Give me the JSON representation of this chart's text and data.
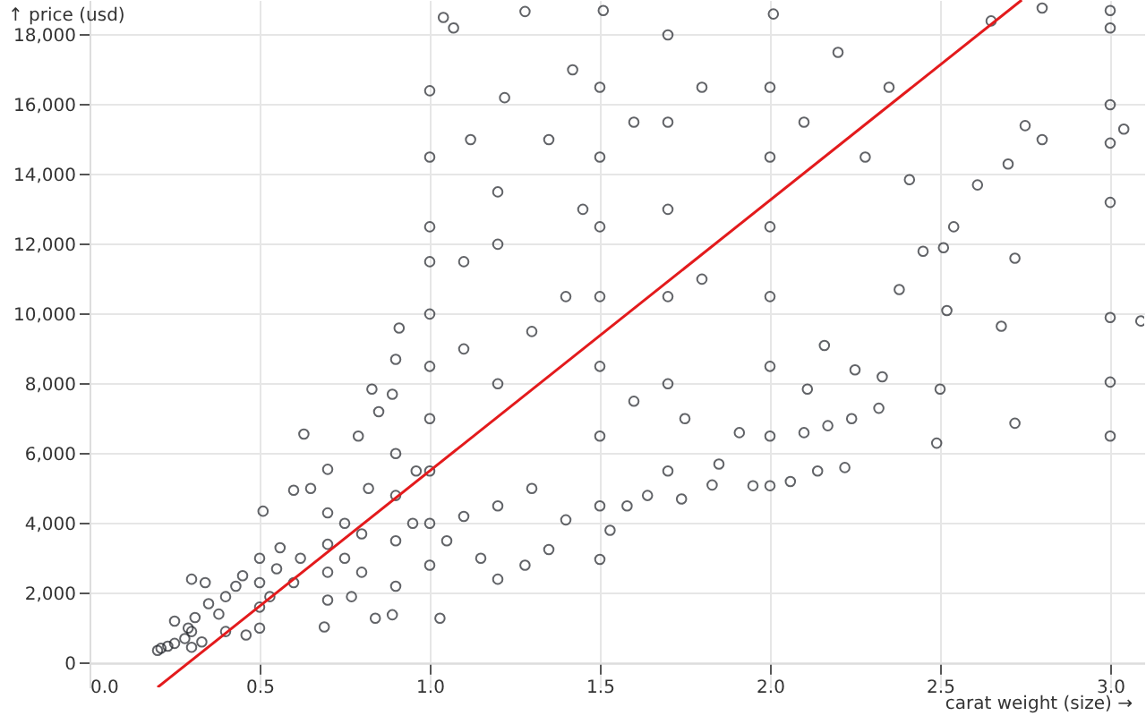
{
  "chart_data": {
    "type": "scatter",
    "xlabel": "carat weight (size) →",
    "ylabel": "↑ price (usd)",
    "xlim": [
      0,
      3.1
    ],
    "ylim": [
      -700,
      19000
    ],
    "xticks": [
      {
        "value": 0,
        "label": "0.0"
      },
      0.5,
      {
        "value": 1,
        "label": "1.0"
      },
      1.5,
      {
        "value": 2,
        "label": "2.0"
      },
      2.5,
      {
        "value": 3,
        "label": "3.0"
      }
    ],
    "yticks": [
      {
        "value": 0,
        "label": "0"
      },
      {
        "value": 2000,
        "label": "2,000"
      },
      {
        "value": 4000,
        "label": "4,000"
      },
      {
        "value": 6000,
        "label": "6,000"
      },
      {
        "value": 8000,
        "label": "8,000"
      },
      {
        "value": 10000,
        "label": "10,000"
      },
      {
        "value": 12000,
        "label": "12,000"
      },
      {
        "value": 14000,
        "label": "14,000"
      },
      {
        "value": 16000,
        "label": "16,000"
      },
      {
        "value": 18000,
        "label": "18,000"
      }
    ],
    "grid": true,
    "series": [
      {
        "color": "#1f2228",
        "marker": "circle",
        "x": [
          0.2,
          0.21,
          0.23,
          0.25,
          0.25,
          0.28,
          0.29,
          0.3,
          0.3,
          0.31,
          0.3,
          0.34,
          0.33,
          0.35,
          0.38,
          0.4,
          0.4,
          0.43,
          0.45,
          0.46,
          0.5,
          0.5,
          0.5,
          0.5,
          0.51,
          0.53,
          0.55,
          0.56,
          0.6,
          0.6,
          0.62,
          0.63,
          0.65,
          0.69,
          0.7,
          0.7,
          0.7,
          0.7,
          0.7,
          0.75,
          0.75,
          0.77,
          0.79,
          0.8,
          0.8,
          0.82,
          0.83,
          0.84,
          0.85,
          0.89,
          0.9,
          0.9,
          0.9,
          0.9,
          0.89,
          0.9,
          0.91,
          0.95,
          0.96,
          1.0,
          1.0,
          1.0,
          1.0,
          1.0,
          1.0,
          1.0,
          1.0,
          1.0,
          1.0,
          1.03,
          1.04,
          1.07,
          1.05,
          1.1,
          1.1,
          1.1,
          1.12,
          1.15,
          1.2,
          1.2,
          1.2,
          1.2,
          1.2,
          1.22,
          1.28,
          1.28,
          1.3,
          1.3,
          1.35,
          1.35,
          1.4,
          1.4,
          1.42,
          1.45,
          1.5,
          1.5,
          1.5,
          1.5,
          1.5,
          1.5,
          1.5,
          1.5,
          1.51,
          1.53,
          1.58,
          1.6,
          1.6,
          1.64,
          1.7,
          1.7,
          1.7,
          1.7,
          1.7,
          1.7,
          1.74,
          1.75,
          1.8,
          1.8,
          1.83,
          1.85,
          1.91,
          1.95,
          2.0,
          2.0,
          2.0,
          2.0,
          2.0,
          2.0,
          2.0,
          2.01,
          2.06,
          2.1,
          2.11,
          2.1,
          2.14,
          2.16,
          2.17,
          2.2,
          2.22,
          2.24,
          2.25,
          2.28,
          2.32,
          2.33,
          2.35,
          2.38,
          2.41,
          2.45,
          2.49,
          2.5,
          2.51,
          2.52,
          2.54,
          2.61,
          2.65,
          2.68,
          2.7,
          2.72,
          2.72,
          2.75,
          2.8,
          2.8,
          3.0,
          3.0,
          3.0,
          3.0,
          3.0,
          3.0,
          3.0,
          3.0,
          3.04,
          3.09
        ],
        "values": [
          360,
          420,
          480,
          560,
          1200,
          700,
          1000,
          450,
          900,
          1300,
          2400,
          2300,
          600,
          1700,
          1400,
          900,
          1900,
          2200,
          2500,
          800,
          1000,
          1600,
          2300,
          3000,
          4350,
          1900,
          2700,
          3300,
          2300,
          4950,
          3000,
          6560,
          5000,
          1030,
          1800,
          2600,
          3400,
          4300,
          5550,
          3000,
          4000,
          1900,
          6500,
          2600,
          3700,
          5000,
          7850,
          1280,
          7200,
          1380,
          2200,
          3500,
          4800,
          6000,
          7700,
          8700,
          9600,
          4000,
          5500,
          2800,
          4000,
          5500,
          7000,
          8500,
          10000,
          11500,
          12500,
          14500,
          16400,
          1280,
          18500,
          18200,
          3500,
          4200,
          9000,
          11500,
          15000,
          3000,
          2400,
          4500,
          8000,
          12000,
          13500,
          16200,
          2800,
          18670,
          5000,
          9500,
          3250,
          15000,
          4100,
          10500,
          17000,
          13000,
          2970,
          4500,
          6500,
          8500,
          10500,
          12500,
          14500,
          16500,
          18700,
          3800,
          4500,
          7500,
          15500,
          4800,
          5500,
          8000,
          10500,
          13000,
          15500,
          18000,
          4700,
          7000,
          11000,
          16500,
          5100,
          5700,
          6600,
          5080,
          5080,
          6500,
          8500,
          10500,
          12500,
          14500,
          16500,
          18600,
          5200,
          6600,
          7850,
          15500,
          5500,
          9100,
          6800,
          17500,
          5600,
          7000,
          8400,
          14500,
          7300,
          8200,
          16500,
          10700,
          13850,
          11800,
          6300,
          7850,
          11900,
          10100,
          12500,
          13700,
          18400,
          9650,
          14300,
          6870,
          11600,
          15400,
          15000,
          18770,
          6500,
          8050,
          9900,
          13200,
          14900,
          16000,
          18200,
          18700,
          15300,
          9800
        ]
      },
      {
        "type": "line",
        "color": "#e31a1c",
        "x": [
          0.2,
          2.74
        ],
        "values": [
          -700,
          19000
        ]
      }
    ]
  }
}
